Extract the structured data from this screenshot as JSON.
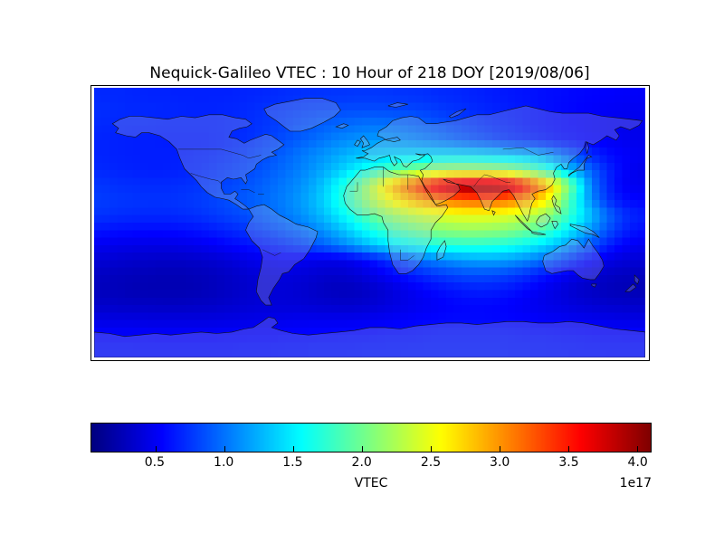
{
  "title": "Nequick-Galileo VTEC : 10 Hour of 218 DOY [2019/08/06]",
  "colors": {
    "background": "#ffffff",
    "frame": "#000000",
    "coastline": "#111111",
    "land_fill": "rgba(200,200,210,0.25)",
    "colorbar_min_color": "#000080",
    "colorbar_max_color": "#800000"
  },
  "chart_data": {
    "type": "heatmap",
    "title": "Nequick-Galileo VTEC : 10 Hour of 218 DOY [2019/08/06]",
    "model": "Nequick-Galileo",
    "quantity": "VTEC",
    "hour_utc": 10,
    "day_of_year": 218,
    "date": "2019/08/06",
    "projection": "equirectangular",
    "map_extent_lonlat": [
      -180,
      180,
      -90,
      90
    ],
    "colormap": "jet",
    "grid_on": false,
    "colorbar": {
      "orientation": "horizontal",
      "label": "VTEC",
      "offset_text": "1e17",
      "ticks": [
        0.5,
        1.0,
        1.5,
        2.0,
        2.5,
        3.0,
        3.5,
        4.0
      ],
      "vmin": 0.035,
      "vmax": 4.1
    },
    "grid": {
      "units": "1e17",
      "lon_start": -175,
      "lon_step": 10,
      "n_lon": 36,
      "lat_start": 85,
      "lat_step": -10,
      "n_lat": 18,
      "order": "rows north to south",
      "values": [
        [
          0.7,
          0.7,
          0.69,
          0.68,
          0.68,
          0.67,
          0.67,
          0.67,
          0.67,
          0.68,
          0.69,
          0.7,
          0.72,
          0.73,
          0.74,
          0.75,
          0.75,
          0.76,
          0.76,
          0.75,
          0.74,
          0.73,
          0.71,
          0.7,
          0.68,
          0.66,
          0.64,
          0.62,
          0.61,
          0.59,
          0.58,
          0.56,
          0.55,
          0.54,
          0.53,
          0.52
        ],
        [
          0.72,
          0.71,
          0.7,
          0.7,
          0.69,
          0.69,
          0.68,
          0.68,
          0.69,
          0.7,
          0.72,
          0.75,
          0.77,
          0.8,
          0.82,
          0.83,
          0.85,
          0.85,
          0.85,
          0.84,
          0.83,
          0.81,
          0.78,
          0.75,
          0.72,
          0.69,
          0.67,
          0.64,
          0.62,
          0.59,
          0.57,
          0.55,
          0.53,
          0.51,
          0.5,
          0.49
        ],
        [
          0.7,
          0.69,
          0.68,
          0.68,
          0.67,
          0.67,
          0.67,
          0.67,
          0.68,
          0.7,
          0.73,
          0.77,
          0.81,
          0.86,
          0.9,
          0.94,
          0.97,
          1.0,
          1.01,
          0.99,
          0.96,
          0.92,
          0.87,
          0.82,
          0.78,
          0.73,
          0.69,
          0.66,
          0.62,
          0.59,
          0.56,
          0.54,
          0.51,
          0.49,
          0.47,
          0.46
        ],
        [
          0.68,
          0.67,
          0.66,
          0.66,
          0.65,
          0.65,
          0.65,
          0.66,
          0.68,
          0.71,
          0.75,
          0.8,
          0.86,
          0.92,
          0.98,
          1.05,
          1.1,
          1.14,
          1.16,
          1.14,
          1.11,
          1.06,
          1.01,
          0.95,
          0.89,
          0.84,
          0.78,
          0.73,
          0.69,
          0.64,
          0.6,
          0.57,
          0.54,
          0.51,
          0.49,
          0.47
        ],
        [
          0.68,
          0.67,
          0.66,
          0.66,
          0.66,
          0.66,
          0.67,
          0.69,
          0.72,
          0.76,
          0.81,
          0.87,
          0.94,
          1.02,
          1.1,
          1.18,
          1.26,
          1.33,
          1.37,
          1.4,
          1.42,
          1.43,
          1.44,
          1.44,
          1.43,
          1.41,
          1.38,
          1.34,
          1.29,
          1.18,
          1.02,
          0.85,
          0.7,
          0.6,
          0.54,
          0.5
        ],
        [
          0.7,
          0.68,
          0.67,
          0.66,
          0.66,
          0.67,
          0.69,
          0.72,
          0.76,
          0.8,
          0.85,
          0.91,
          0.98,
          1.06,
          1.16,
          1.28,
          1.42,
          1.58,
          1.74,
          1.9,
          2.04,
          2.14,
          2.21,
          2.25,
          2.26,
          2.25,
          2.21,
          2.12,
          1.97,
          1.76,
          1.5,
          1.2,
          0.92,
          0.7,
          0.55,
          0.46
        ],
        [
          0.75,
          0.73,
          0.72,
          0.71,
          0.71,
          0.72,
          0.74,
          0.77,
          0.81,
          0.85,
          0.9,
          0.96,
          1.03,
          1.12,
          1.25,
          1.45,
          1.72,
          2.05,
          2.45,
          2.85,
          3.15,
          3.5,
          3.78,
          3.96,
          4.05,
          4.07,
          4.02,
          3.8,
          3.42,
          2.95,
          2.38,
          1.72,
          1.02,
          0.72,
          0.52,
          0.48
        ],
        [
          0.78,
          0.76,
          0.75,
          0.74,
          0.74,
          0.75,
          0.77,
          0.8,
          0.84,
          0.88,
          0.93,
          0.99,
          1.06,
          1.16,
          1.3,
          1.5,
          1.76,
          2.06,
          2.36,
          2.6,
          2.8,
          2.96,
          3.08,
          3.16,
          3.21,
          3.22,
          3.18,
          3.08,
          2.9,
          2.62,
          2.14,
          1.6,
          1.08,
          0.76,
          0.6,
          0.55
        ],
        [
          0.74,
          0.72,
          0.71,
          0.7,
          0.7,
          0.71,
          0.73,
          0.76,
          0.8,
          0.84,
          0.89,
          0.95,
          1.03,
          1.12,
          1.24,
          1.4,
          1.6,
          1.82,
          2.02,
          2.18,
          2.3,
          2.39,
          2.45,
          2.49,
          2.51,
          2.51,
          2.48,
          2.42,
          2.32,
          2.16,
          1.92,
          1.62,
          1.28,
          0.98,
          0.76,
          0.66
        ],
        [
          0.62,
          0.6,
          0.59,
          0.58,
          0.58,
          0.59,
          0.61,
          0.64,
          0.68,
          0.72,
          0.77,
          0.83,
          0.9,
          0.98,
          1.08,
          1.2,
          1.36,
          1.54,
          1.7,
          1.84,
          1.95,
          2.04,
          2.1,
          2.14,
          2.16,
          2.15,
          2.12,
          2.06,
          1.96,
          1.82,
          1.62,
          1.38,
          1.12,
          0.88,
          0.7,
          0.6
        ],
        [
          0.48,
          0.46,
          0.45,
          0.44,
          0.44,
          0.45,
          0.47,
          0.5,
          0.54,
          0.58,
          0.62,
          0.67,
          0.73,
          0.8,
          0.88,
          0.98,
          1.1,
          1.24,
          1.37,
          1.48,
          1.57,
          1.64,
          1.69,
          1.72,
          1.73,
          1.72,
          1.69,
          1.63,
          1.54,
          1.42,
          1.26,
          1.06,
          0.86,
          0.68,
          0.55,
          0.48
        ],
        [
          0.38,
          0.36,
          0.34,
          0.33,
          0.32,
          0.32,
          0.33,
          0.35,
          0.38,
          0.42,
          0.46,
          0.49,
          0.51,
          0.49,
          0.46,
          0.45,
          0.47,
          0.54,
          0.64,
          0.76,
          0.88,
          0.99,
          1.07,
          1.13,
          1.18,
          1.2,
          1.19,
          1.14,
          1.06,
          0.95,
          0.82,
          0.68,
          0.55,
          0.45,
          0.4,
          0.38
        ],
        [
          0.3,
          0.28,
          0.27,
          0.26,
          0.25,
          0.25,
          0.26,
          0.28,
          0.31,
          0.34,
          0.38,
          0.4,
          0.41,
          0.39,
          0.36,
          0.34,
          0.35,
          0.4,
          0.47,
          0.55,
          0.63,
          0.7,
          0.76,
          0.81,
          0.84,
          0.84,
          0.82,
          0.77,
          0.7,
          0.61,
          0.52,
          0.44,
          0.37,
          0.32,
          0.29,
          0.28
        ],
        [
          0.28,
          0.27,
          0.25,
          0.24,
          0.24,
          0.24,
          0.25,
          0.27,
          0.3,
          0.33,
          0.36,
          0.38,
          0.38,
          0.36,
          0.32,
          0.29,
          0.28,
          0.3,
          0.35,
          0.41,
          0.47,
          0.53,
          0.58,
          0.62,
          0.65,
          0.66,
          0.64,
          0.6,
          0.54,
          0.47,
          0.41,
          0.35,
          0.31,
          0.28,
          0.26,
          0.25
        ],
        [
          0.33,
          0.32,
          0.31,
          0.31,
          0.3,
          0.3,
          0.31,
          0.32,
          0.34,
          0.36,
          0.38,
          0.39,
          0.39,
          0.38,
          0.36,
          0.35,
          0.34,
          0.35,
          0.38,
          0.42,
          0.46,
          0.49,
          0.52,
          0.55,
          0.56,
          0.56,
          0.55,
          0.52,
          0.49,
          0.46,
          0.43,
          0.4,
          0.37,
          0.35,
          0.34,
          0.33
        ],
        [
          0.44,
          0.43,
          0.43,
          0.42,
          0.42,
          0.42,
          0.42,
          0.42,
          0.43,
          0.44,
          0.45,
          0.46,
          0.47,
          0.48,
          0.48,
          0.48,
          0.48,
          0.49,
          0.5,
          0.52,
          0.53,
          0.55,
          0.56,
          0.57,
          0.57,
          0.57,
          0.56,
          0.55,
          0.54,
          0.52,
          0.51,
          0.49,
          0.48,
          0.46,
          0.45,
          0.44
        ],
        [
          0.55,
          0.54,
          0.54,
          0.54,
          0.53,
          0.53,
          0.53,
          0.53,
          0.54,
          0.54,
          0.55,
          0.55,
          0.56,
          0.56,
          0.57,
          0.57,
          0.58,
          0.58,
          0.59,
          0.6,
          0.6,
          0.61,
          0.62,
          0.62,
          0.62,
          0.62,
          0.62,
          0.61,
          0.6,
          0.6,
          0.59,
          0.58,
          0.57,
          0.56,
          0.56,
          0.55
        ],
        [
          0.6,
          0.6,
          0.6,
          0.59,
          0.59,
          0.59,
          0.59,
          0.59,
          0.59,
          0.6,
          0.6,
          0.6,
          0.61,
          0.61,
          0.62,
          0.62,
          0.62,
          0.63,
          0.63,
          0.63,
          0.64,
          0.64,
          0.64,
          0.64,
          0.64,
          0.64,
          0.64,
          0.63,
          0.63,
          0.62,
          0.62,
          0.61,
          0.61,
          0.6,
          0.6,
          0.6
        ]
      ]
    }
  }
}
